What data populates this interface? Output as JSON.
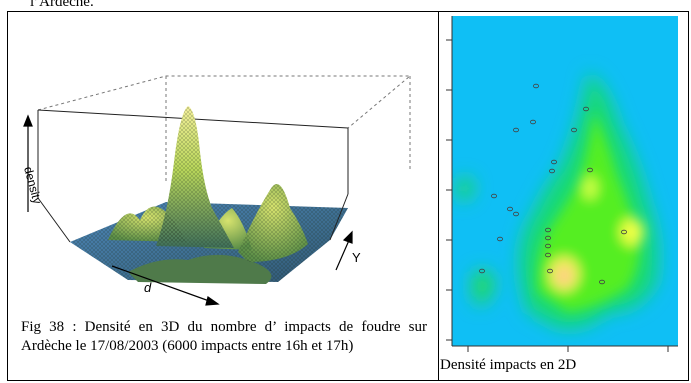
{
  "header": {
    "fragment": "l’Ardèche."
  },
  "left_panel": {
    "axis_density": "density",
    "axis_d": "d",
    "axis_y": "Y",
    "caption": "Fig 38 : Densité en 3D du nombre d’ impacts de foudre sur Ardèche le 17/08/2003 (6000 impacts entre 16h et 17h)"
  },
  "right_panel": {
    "caption": "Densité impacts en 2D"
  },
  "colors": {
    "surface_green": "#9acd32",
    "surface_blue": "#4a7fb5",
    "heat_background": "#00bfff",
    "heat_green": "#33dd33",
    "heat_yellow": "#eeff44",
    "heat_peak": "#ffcc88"
  }
}
